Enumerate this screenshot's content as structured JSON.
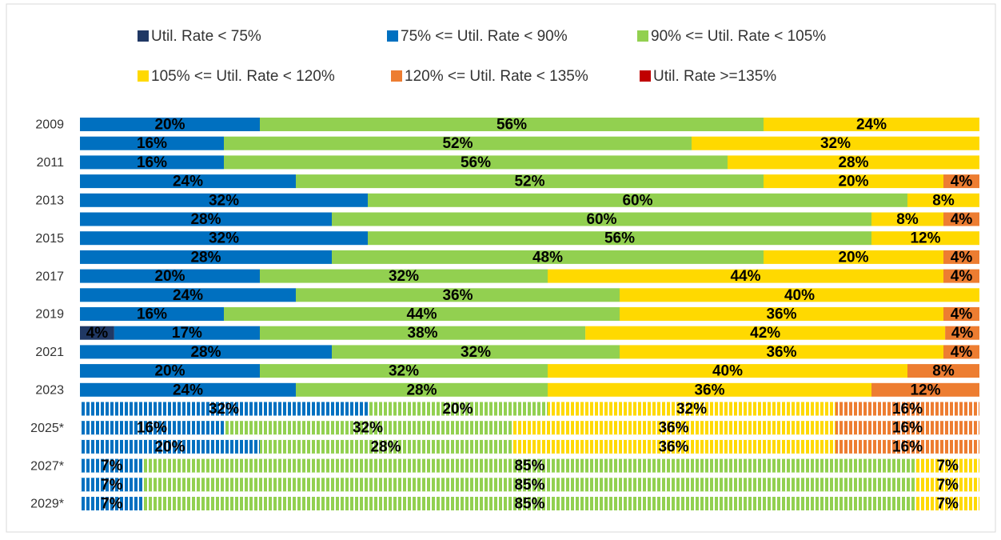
{
  "chart_data": {
    "type": "bar",
    "orientation": "horizontal",
    "stacking": "percent",
    "categories": [
      "2009",
      null,
      "2011",
      null,
      "2013",
      null,
      "2015",
      null,
      "2017",
      null,
      "2019",
      null,
      "2021",
      null,
      "2023",
      null,
      "2025*",
      null,
      "2027*",
      null,
      "2029*"
    ],
    "hatched": [
      false,
      false,
      false,
      false,
      false,
      false,
      false,
      false,
      false,
      false,
      false,
      false,
      false,
      false,
      false,
      true,
      true,
      true,
      true,
      true,
      true
    ],
    "series": [
      {
        "name": "Util. Rate < 75%",
        "color": "#203864",
        "values": [
          0,
          0,
          0,
          0,
          0,
          0,
          0,
          0,
          0,
          0,
          0,
          4,
          0,
          0,
          0,
          0,
          0,
          0,
          0,
          0,
          0
        ],
        "value_labels": [
          null,
          null,
          null,
          null,
          null,
          null,
          null,
          null,
          null,
          null,
          null,
          "4%",
          null,
          null,
          null,
          null,
          null,
          null,
          null,
          null,
          null
        ]
      },
      {
        "name": "75% <= Util. Rate < 90%",
        "color": "#0070c0",
        "values": [
          20,
          16,
          16,
          24,
          32,
          28,
          32,
          28,
          20,
          24,
          16,
          17,
          28,
          20,
          24,
          32,
          16,
          20,
          7,
          7,
          7
        ],
        "value_labels": [
          "20%",
          "16%",
          "16%",
          "24%",
          "32%",
          "28%",
          "32%",
          "28%",
          "20%",
          "24%",
          "16%",
          "17%",
          "28%",
          "20%",
          "24%",
          "32%",
          "16%",
          "20%",
          "7%",
          "7%",
          "7%"
        ]
      },
      {
        "name": "90% <= Util. Rate < 105%",
        "color": "#92d050",
        "values": [
          56,
          52,
          56,
          52,
          60,
          60,
          56,
          48,
          32,
          36,
          44,
          38,
          32,
          32,
          28,
          20,
          32,
          28,
          85,
          85,
          85
        ],
        "value_labels": [
          "56%",
          "52%",
          "56%",
          "52%",
          "60%",
          "60%",
          "56%",
          "48%",
          "32%",
          "36%",
          "44%",
          "38%",
          "32%",
          "32%",
          "28%",
          "20%",
          "32%",
          "28%",
          "85%",
          "85%",
          "85%"
        ]
      },
      {
        "name": "105% <= Util. Rate < 120%",
        "color": "#ffd900",
        "values": [
          24,
          32,
          28,
          20,
          8,
          8,
          12,
          20,
          44,
          40,
          36,
          42,
          36,
          40,
          36,
          32,
          36,
          36,
          7,
          7,
          7
        ],
        "value_labels": [
          "24%",
          "32%",
          "28%",
          "20%",
          "8%",
          "8%",
          "12%",
          "20%",
          "44%",
          "40%",
          "36%",
          "42%",
          "36%",
          "40%",
          "36%",
          "32%",
          "36%",
          "36%",
          "7%",
          "7%",
          "7%"
        ]
      },
      {
        "name": "120% <= Util. Rate < 135%",
        "color": "#ed7d31",
        "values": [
          0,
          0,
          0,
          4,
          0,
          4,
          0,
          4,
          4,
          0,
          4,
          4,
          4,
          8,
          12,
          16,
          16,
          16,
          0,
          0,
          0
        ],
        "value_labels": [
          null,
          null,
          null,
          "4%",
          null,
          "4%",
          null,
          "4%",
          "4%",
          null,
          "4%",
          "4%",
          "4%",
          "8%",
          "12%",
          "16%",
          "16%",
          "16%",
          null,
          null,
          null
        ]
      },
      {
        "name": "Util. Rate >=135%",
        "color": "#c00000",
        "values": [
          0,
          0,
          0,
          0,
          0,
          0,
          0,
          0,
          0,
          0,
          0,
          0,
          0,
          0,
          0,
          0,
          0,
          0,
          0,
          0,
          0
        ],
        "value_labels": [
          null,
          null,
          null,
          null,
          null,
          null,
          null,
          null,
          null,
          null,
          null,
          null,
          null,
          null,
          null,
          null,
          null,
          null,
          null,
          null,
          null
        ]
      }
    ]
  }
}
